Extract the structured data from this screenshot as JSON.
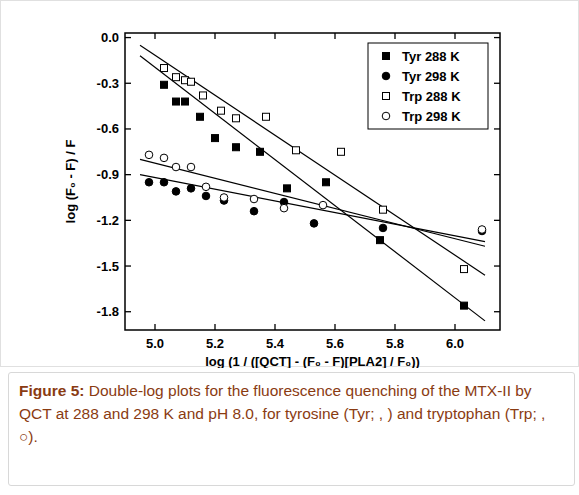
{
  "chart_data": {
    "type": "scatter",
    "x_label": "log (1 / ([QCT] - (F₀ - F)[PLA2] / F₀))",
    "y_label": "log (F₀ - F) / F",
    "caption": {
      "label": "Figure 5:",
      "text": "Double-log plots for the fluorescence quenching of the MTX-II by QCT at 288 and 298 K and pH 8.0, for tyrosine (Tyr; , ) and tryptophan (Trp; , ○)."
    },
    "xlim": [
      4.9,
      6.15
    ],
    "ylim": [
      -1.92,
      0.03
    ],
    "xticks": [
      {
        "value": 5,
        "label": "5.0"
      },
      5.2,
      5.4,
      5.6,
      5.8,
      {
        "value": 6,
        "label": "6.0"
      }
    ],
    "yticks": [
      {
        "value": 0,
        "label": "0.0"
      },
      -0.3,
      -0.6,
      -0.9,
      -1.2,
      -1.5,
      -1.8
    ],
    "legend": "upper right",
    "grid": false,
    "series": [
      {
        "name": "Tyr 288 K",
        "color": "#000000",
        "marker": "square",
        "x": [
          5.03,
          5.07,
          5.1,
          5.15,
          5.2,
          5.27,
          5.35,
          5.44,
          5.57,
          5.75,
          6.03
        ],
        "values": [
          -0.31,
          -0.42,
          -0.42,
          -0.52,
          -0.66,
          -0.72,
          -0.75,
          -0.99,
          -0.95,
          -1.33,
          -1.76
        ],
        "fit": {
          "x": [
            4.95,
            6.1
          ],
          "y": [
            -0.12,
            -1.86
          ]
        }
      },
      {
        "name": "Tyr 298 K",
        "color": "#000000",
        "marker": "circle",
        "x": [
          4.98,
          5.03,
          5.07,
          5.12,
          5.17,
          5.23,
          5.33,
          5.43,
          5.53,
          5.76,
          6.09
        ],
        "values": [
          -0.95,
          -0.95,
          -1.01,
          -0.99,
          -1.04,
          -1.07,
          -1.14,
          -1.08,
          -1.22,
          -1.25,
          -1.27
        ],
        "fit": {
          "x": [
            4.95,
            6.1
          ],
          "y": [
            -0.9,
            -1.34
          ]
        }
      },
      {
        "name": "Trp 288 K",
        "color": "#000000",
        "marker": "square-open",
        "x": [
          5.03,
          5.07,
          5.1,
          5.12,
          5.16,
          5.22,
          5.27,
          5.37,
          5.47,
          5.62,
          5.76,
          6.03
        ],
        "values": [
          -0.2,
          -0.26,
          -0.28,
          -0.29,
          -0.38,
          -0.48,
          -0.53,
          -0.52,
          -0.74,
          -0.75,
          -1.13,
          -1.52
        ],
        "fit": {
          "x": [
            4.95,
            6.1
          ],
          "y": [
            -0.05,
            -1.56
          ]
        }
      },
      {
        "name": "Trp 298 K",
        "color": "#000000",
        "marker": "circle-open",
        "x": [
          4.98,
          5.03,
          5.07,
          5.12,
          5.17,
          5.23,
          5.33,
          5.43,
          5.56,
          6.09
        ],
        "values": [
          -0.77,
          -0.79,
          -0.85,
          -0.85,
          -0.98,
          -1.05,
          -1.06,
          -1.12,
          -1.1,
          -1.26
        ],
        "fit": {
          "x": [
            4.95,
            6.1
          ],
          "y": [
            -0.8,
            -1.37
          ]
        }
      }
    ]
  }
}
